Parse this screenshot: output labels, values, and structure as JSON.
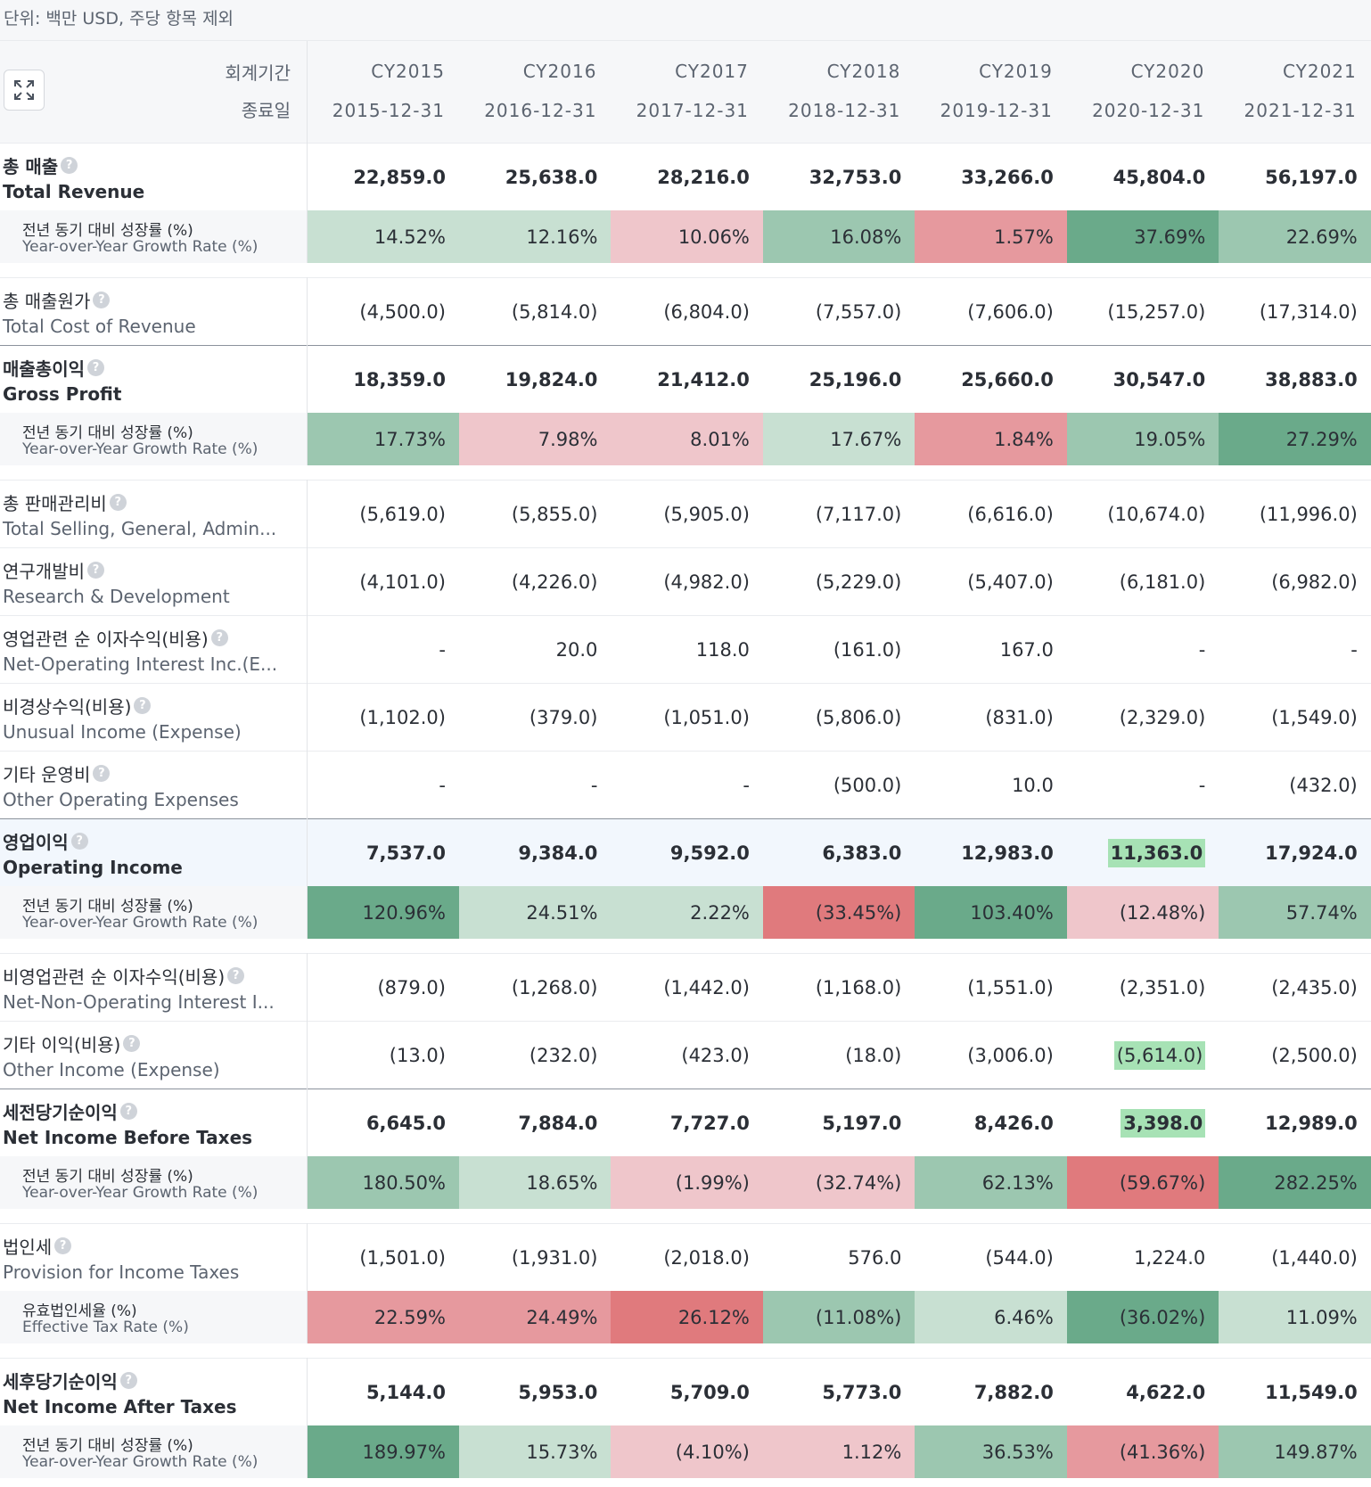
{
  "unit_text": "단위: 백만 USD, 주당 항목 제외",
  "header": {
    "period_label": "회계기간",
    "end_date_label": "종료일",
    "expand_icon": "expand-icon",
    "periods": [
      "CY2015",
      "CY2016",
      "CY2017",
      "CY2018",
      "CY2019",
      "CY2020",
      "CY2021"
    ],
    "end_dates": [
      "2015-12-31",
      "2016-12-31",
      "2017-12-31",
      "2018-12-31",
      "2019-12-31",
      "2020-12-31",
      "2021-12-31"
    ]
  },
  "colors": {
    "green_dark": "#6aaa8a",
    "green_mid": "#9cc7b0",
    "green_light": "#c8e0d2",
    "red_light": "#efc6cb",
    "red_mid": "#e6999e",
    "red_dark": "#e07a7d",
    "highlight": "#a7e2b5"
  },
  "rows": [
    {
      "ko": "총 매출",
      "en": "Total Revenue",
      "values": [
        "22,859.0",
        "25,638.0",
        "28,216.0",
        "32,753.0",
        "33,266.0",
        "45,804.0",
        "56,197.0"
      ]
    },
    {
      "ko": "전년 동기 대비 성장률 (%)",
      "en": "Year-over-Year Growth Rate (%)",
      "values": [
        "14.52%",
        "12.16%",
        "10.06%",
        "16.08%",
        "1.57%",
        "37.69%",
        "22.69%"
      ]
    },
    {
      "ko": "총 매출원가",
      "en": "Total Cost of Revenue",
      "values": [
        "(4,500.0)",
        "(5,814.0)",
        "(6,804.0)",
        "(7,557.0)",
        "(7,606.0)",
        "(15,257.0)",
        "(17,314.0)"
      ]
    },
    {
      "ko": "매출총이익",
      "en": "Gross Profit",
      "values": [
        "18,359.0",
        "19,824.0",
        "21,412.0",
        "25,196.0",
        "25,660.0",
        "30,547.0",
        "38,883.0"
      ]
    },
    {
      "ko": "전년 동기 대비 성장률 (%)",
      "en": "Year-over-Year Growth Rate (%)",
      "values": [
        "17.73%",
        "7.98%",
        "8.01%",
        "17.67%",
        "1.84%",
        "19.05%",
        "27.29%"
      ]
    },
    {
      "ko": "총 판매관리비",
      "en": "Total Selling, General, Admin...",
      "values": [
        "(5,619.0)",
        "(5,855.0)",
        "(5,905.0)",
        "(7,117.0)",
        "(6,616.0)",
        "(10,674.0)",
        "(11,996.0)"
      ]
    },
    {
      "ko": "연구개발비",
      "en": "Research & Development",
      "values": [
        "(4,101.0)",
        "(4,226.0)",
        "(4,982.0)",
        "(5,229.0)",
        "(5,407.0)",
        "(6,181.0)",
        "(6,982.0)"
      ]
    },
    {
      "ko": "영업관련 순 이자수익(비용)",
      "en": "Net-Operating Interest Inc.(E...",
      "values": [
        "-",
        "20.0",
        "118.0",
        "(161.0)",
        "167.0",
        "-",
        "-"
      ]
    },
    {
      "ko": "비경상수익(비용)",
      "en": "Unusual Income (Expense)",
      "values": [
        "(1,102.0)",
        "(379.0)",
        "(1,051.0)",
        "(5,806.0)",
        "(831.0)",
        "(2,329.0)",
        "(1,549.0)"
      ]
    },
    {
      "ko": "기타 운영비",
      "en": "Other Operating Expenses",
      "values": [
        "-",
        "-",
        "-",
        "(500.0)",
        "10.0",
        "-",
        "(432.0)"
      ]
    },
    {
      "ko": "영업이익",
      "en": "Operating Income",
      "values": [
        "7,537.0",
        "9,384.0",
        "9,592.0",
        "6,383.0",
        "12,983.0",
        "11,363.0",
        "17,924.0"
      ]
    },
    {
      "ko": "전년 동기 대비 성장률 (%)",
      "en": "Year-over-Year Growth Rate (%)",
      "values": [
        "120.96%",
        "24.51%",
        "2.22%",
        "(33.45%)",
        "103.40%",
        "(12.48%)",
        "57.74%"
      ]
    },
    {
      "ko": "비영업관련 순 이자수익(비용)",
      "en": "Net-Non-Operating Interest I...",
      "values": [
        "(879.0)",
        "(1,268.0)",
        "(1,442.0)",
        "(1,168.0)",
        "(1,551.0)",
        "(2,351.0)",
        "(2,435.0)"
      ]
    },
    {
      "ko": "기타 이익(비용)",
      "en": "Other Income (Expense)",
      "values": [
        "(13.0)",
        "(232.0)",
        "(423.0)",
        "(18.0)",
        "(3,006.0)",
        "(5,614.0)",
        "(2,500.0)"
      ]
    },
    {
      "ko": "세전당기순이익",
      "en": "Net Income Before Taxes",
      "values": [
        "6,645.0",
        "7,884.0",
        "7,727.0",
        "5,197.0",
        "8,426.0",
        "3,398.0",
        "12,989.0"
      ]
    },
    {
      "ko": "전년 동기 대비 성장률 (%)",
      "en": "Year-over-Year Growth Rate (%)",
      "values": [
        "180.50%",
        "18.65%",
        "(1.99%)",
        "(32.74%)",
        "62.13%",
        "(59.67%)",
        "282.25%"
      ]
    },
    {
      "ko": "법인세",
      "en": "Provision for Income Taxes",
      "values": [
        "(1,501.0)",
        "(1,931.0)",
        "(2,018.0)",
        "576.0",
        "(544.0)",
        "1,224.0",
        "(1,440.0)"
      ]
    },
    {
      "ko": "유효법인세율 (%)",
      "en": "Effective Tax Rate (%)",
      "values": [
        "22.59%",
        "24.49%",
        "26.12%",
        "(11.08%)",
        "6.46%",
        "(36.02%)",
        "11.09%"
      ]
    },
    {
      "ko": "세후당기순이익",
      "en": "Net Income After Taxes",
      "values": [
        "5,144.0",
        "5,953.0",
        "5,709.0",
        "5,773.0",
        "7,882.0",
        "4,622.0",
        "11,549.0"
      ]
    },
    {
      "ko": "전년 동기 대비 성장률 (%)",
      "en": "Year-over-Year Growth Rate (%)",
      "values": [
        "189.97%",
        "15.73%",
        "(4.10%)",
        "1.12%",
        "36.53%",
        "(41.36%)",
        "149.87%"
      ]
    }
  ]
}
